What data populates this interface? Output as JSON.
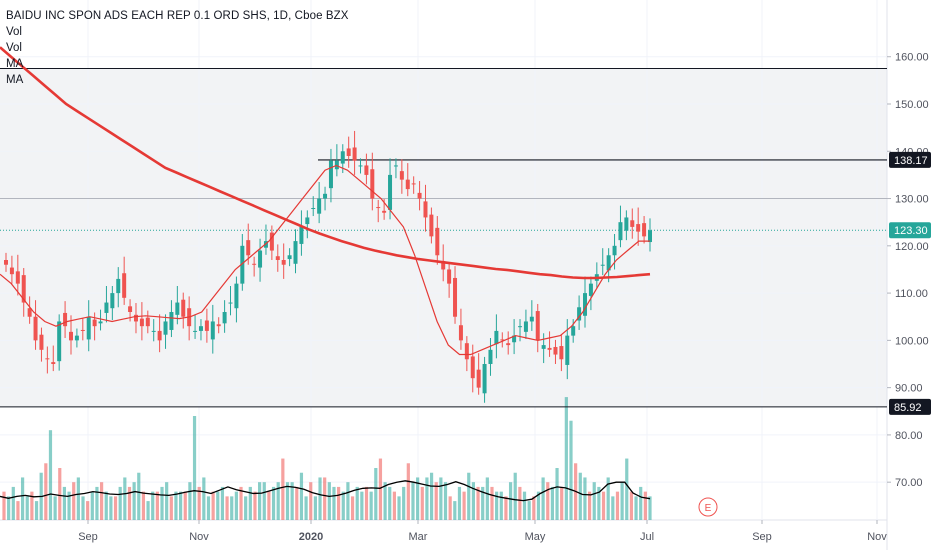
{
  "legend": {
    "title": "BAIDU INC SPON ADS EACH REP 0.1 ORD SHS, 1D, Cboe BZX",
    "line2": "Vol",
    "line3": "Vol",
    "line4": "MA",
    "line5": "MA"
  },
  "colors": {
    "up": "#26a69a",
    "down": "#ef5350",
    "ma_slow": "#e53935",
    "ma_fast": "#e53935",
    "vol_ma": "#000000",
    "last_price": "#26a69a",
    "hline": "#131722",
    "zone_fill": "#f2f3f5"
  },
  "event_marker": "E",
  "chart_data": {
    "type": "candlestick",
    "y_range": [
      62,
      172
    ],
    "y_ticks": [
      "160.00",
      "150.00",
      "140.00",
      "130.00",
      "120.00",
      "110.00",
      "100.00",
      "90.00",
      "80.00",
      "70.00"
    ],
    "y_tick_values": [
      160,
      150,
      140,
      130,
      120,
      110,
      100,
      90,
      80,
      70
    ],
    "x_labels": [
      "Sep",
      "Nov",
      "2020",
      "Mar",
      "May",
      "Jul",
      "Sep",
      "Nov"
    ],
    "price_labels": [
      {
        "value": 138.17,
        "text": "138.17",
        "style": "line"
      },
      {
        "value": 123.3,
        "text": "123.30",
        "style": "last"
      },
      {
        "value": 85.92,
        "text": "85.92",
        "style": "line"
      }
    ],
    "zones": [
      [
        85.92,
        157.5
      ]
    ],
    "hlines": [
      157.5,
      130,
      85.92
    ],
    "closes": [
      116,
      114,
      112,
      108,
      105,
      100,
      98,
      96,
      95,
      104,
      103,
      100,
      101,
      102,
      105,
      103,
      104,
      108,
      110,
      113,
      109,
      106,
      104,
      103,
      103,
      102,
      100,
      104,
      106,
      108,
      105,
      103,
      102,
      103,
      102,
      104,
      103,
      106,
      108,
      112,
      120,
      118,
      116,
      119,
      121,
      119,
      117,
      116,
      118,
      121,
      124,
      126,
      128,
      130,
      131,
      138,
      138,
      140,
      139,
      138,
      137,
      135,
      130,
      128,
      127,
      135,
      137,
      134,
      132,
      133,
      130,
      126,
      122,
      118,
      115,
      112,
      105,
      100,
      96,
      92,
      90,
      95,
      98,
      102,
      100,
      99,
      101,
      103,
      104,
      105,
      100,
      99,
      98,
      97,
      96,
      101,
      103,
      107,
      110,
      112,
      114,
      116,
      118,
      120,
      125,
      126,
      124,
      123,
      122,
      123.3
    ],
    "ma_slow": [
      162,
      160,
      158,
      156,
      154,
      152,
      150,
      148.5,
      147,
      145.5,
      144,
      142.5,
      141,
      139.5,
      138,
      136.5,
      135.5,
      134.5,
      133.5,
      132.5,
      131.5,
      130.5,
      129.5,
      128.5,
      127.5,
      126.5,
      125.5,
      124.5,
      123.5,
      122.6,
      121.8,
      121,
      120.3,
      119.6,
      119,
      118.5,
      118,
      117.6,
      117.2,
      116.9,
      116.6,
      116.3,
      116,
      115.7,
      115.4,
      115.1,
      114.9,
      114.6,
      114.3,
      114,
      113.8,
      113.5,
      113.3,
      113.2,
      113.2,
      113.3,
      113.4,
      113.6,
      113.8,
      114
    ],
    "ma_fast": [
      114,
      112,
      109,
      106,
      104,
      103,
      104,
      104.5,
      105,
      104.5,
      104,
      104.5,
      105,
      105.2,
      105,
      104.8,
      104.6,
      105,
      106,
      109,
      112,
      115,
      117,
      119,
      121,
      124,
      127,
      130,
      133,
      136,
      137,
      136,
      134,
      132,
      130,
      127,
      124,
      118,
      111,
      104,
      99,
      97,
      97,
      98,
      99,
      100,
      101,
      100.5,
      100,
      100.5,
      101,
      103,
      106,
      110,
      114,
      117,
      119,
      121,
      121
    ],
    "vol_ma": [
      67,
      66.6,
      67,
      67.2,
      66.9,
      67,
      67.5,
      67.2,
      67,
      67.4,
      67.6,
      68,
      67.8,
      67.5,
      67.4,
      67.6,
      68,
      67.7,
      67.5,
      67.3,
      67.2,
      67.5,
      67.9,
      68.2,
      68,
      67.6,
      68.3,
      69,
      68.4,
      68,
      67.6,
      67.7,
      68.2,
      68.7,
      69.1,
      68.9,
      68.5,
      67.8,
      67.3,
      67,
      67.2,
      67.7,
      68.3,
      68.7,
      68.8,
      68.7,
      69.5,
      70,
      70.3,
      70,
      69.6,
      69.2,
      69.1,
      69.5,
      70.1,
      69.5,
      68.7,
      68,
      67.4,
      66.9,
      66.6,
      66.3,
      66.1,
      66.4,
      67.6,
      68.5,
      69,
      68.8,
      68.2,
      67.4,
      67.3,
      67.9,
      69.6,
      70,
      70,
      67.7,
      66.8,
      66.5
    ],
    "volumes": [
      68,
      67,
      69,
      66,
      71,
      67,
      68,
      66,
      72,
      74,
      81,
      67,
      73,
      69,
      68,
      70,
      71,
      67,
      66,
      68,
      69,
      70,
      68,
      67,
      67,
      69,
      71,
      69,
      70,
      72,
      68,
      66,
      68,
      68,
      69,
      70,
      67,
      68,
      68,
      68,
      70,
      84,
      69,
      71,
      67,
      68,
      68,
      69,
      67,
      67,
      68,
      69,
      67,
      69,
      68,
      70,
      70,
      68,
      69,
      70,
      75,
      70,
      70,
      69,
      72,
      67,
      70,
      67,
      71,
      71,
      70,
      69,
      69,
      68,
      70,
      67,
      69,
      68,
      69,
      68,
      73,
      75,
      70,
      69,
      68,
      67,
      69,
      74,
      70,
      71,
      69,
      71,
      72,
      70,
      71,
      70,
      67,
      66,
      69,
      68,
      72,
      70,
      69,
      69,
      71,
      69,
      68,
      68,
      67,
      70,
      72,
      69,
      68,
      66,
      67,
      68,
      71,
      70,
      69,
      73,
      69,
      88,
      83,
      74,
      72,
      71,
      68,
      70,
      69,
      68,
      71,
      67,
      68,
      70,
      75,
      68,
      67,
      69,
      68,
      67
    ]
  }
}
